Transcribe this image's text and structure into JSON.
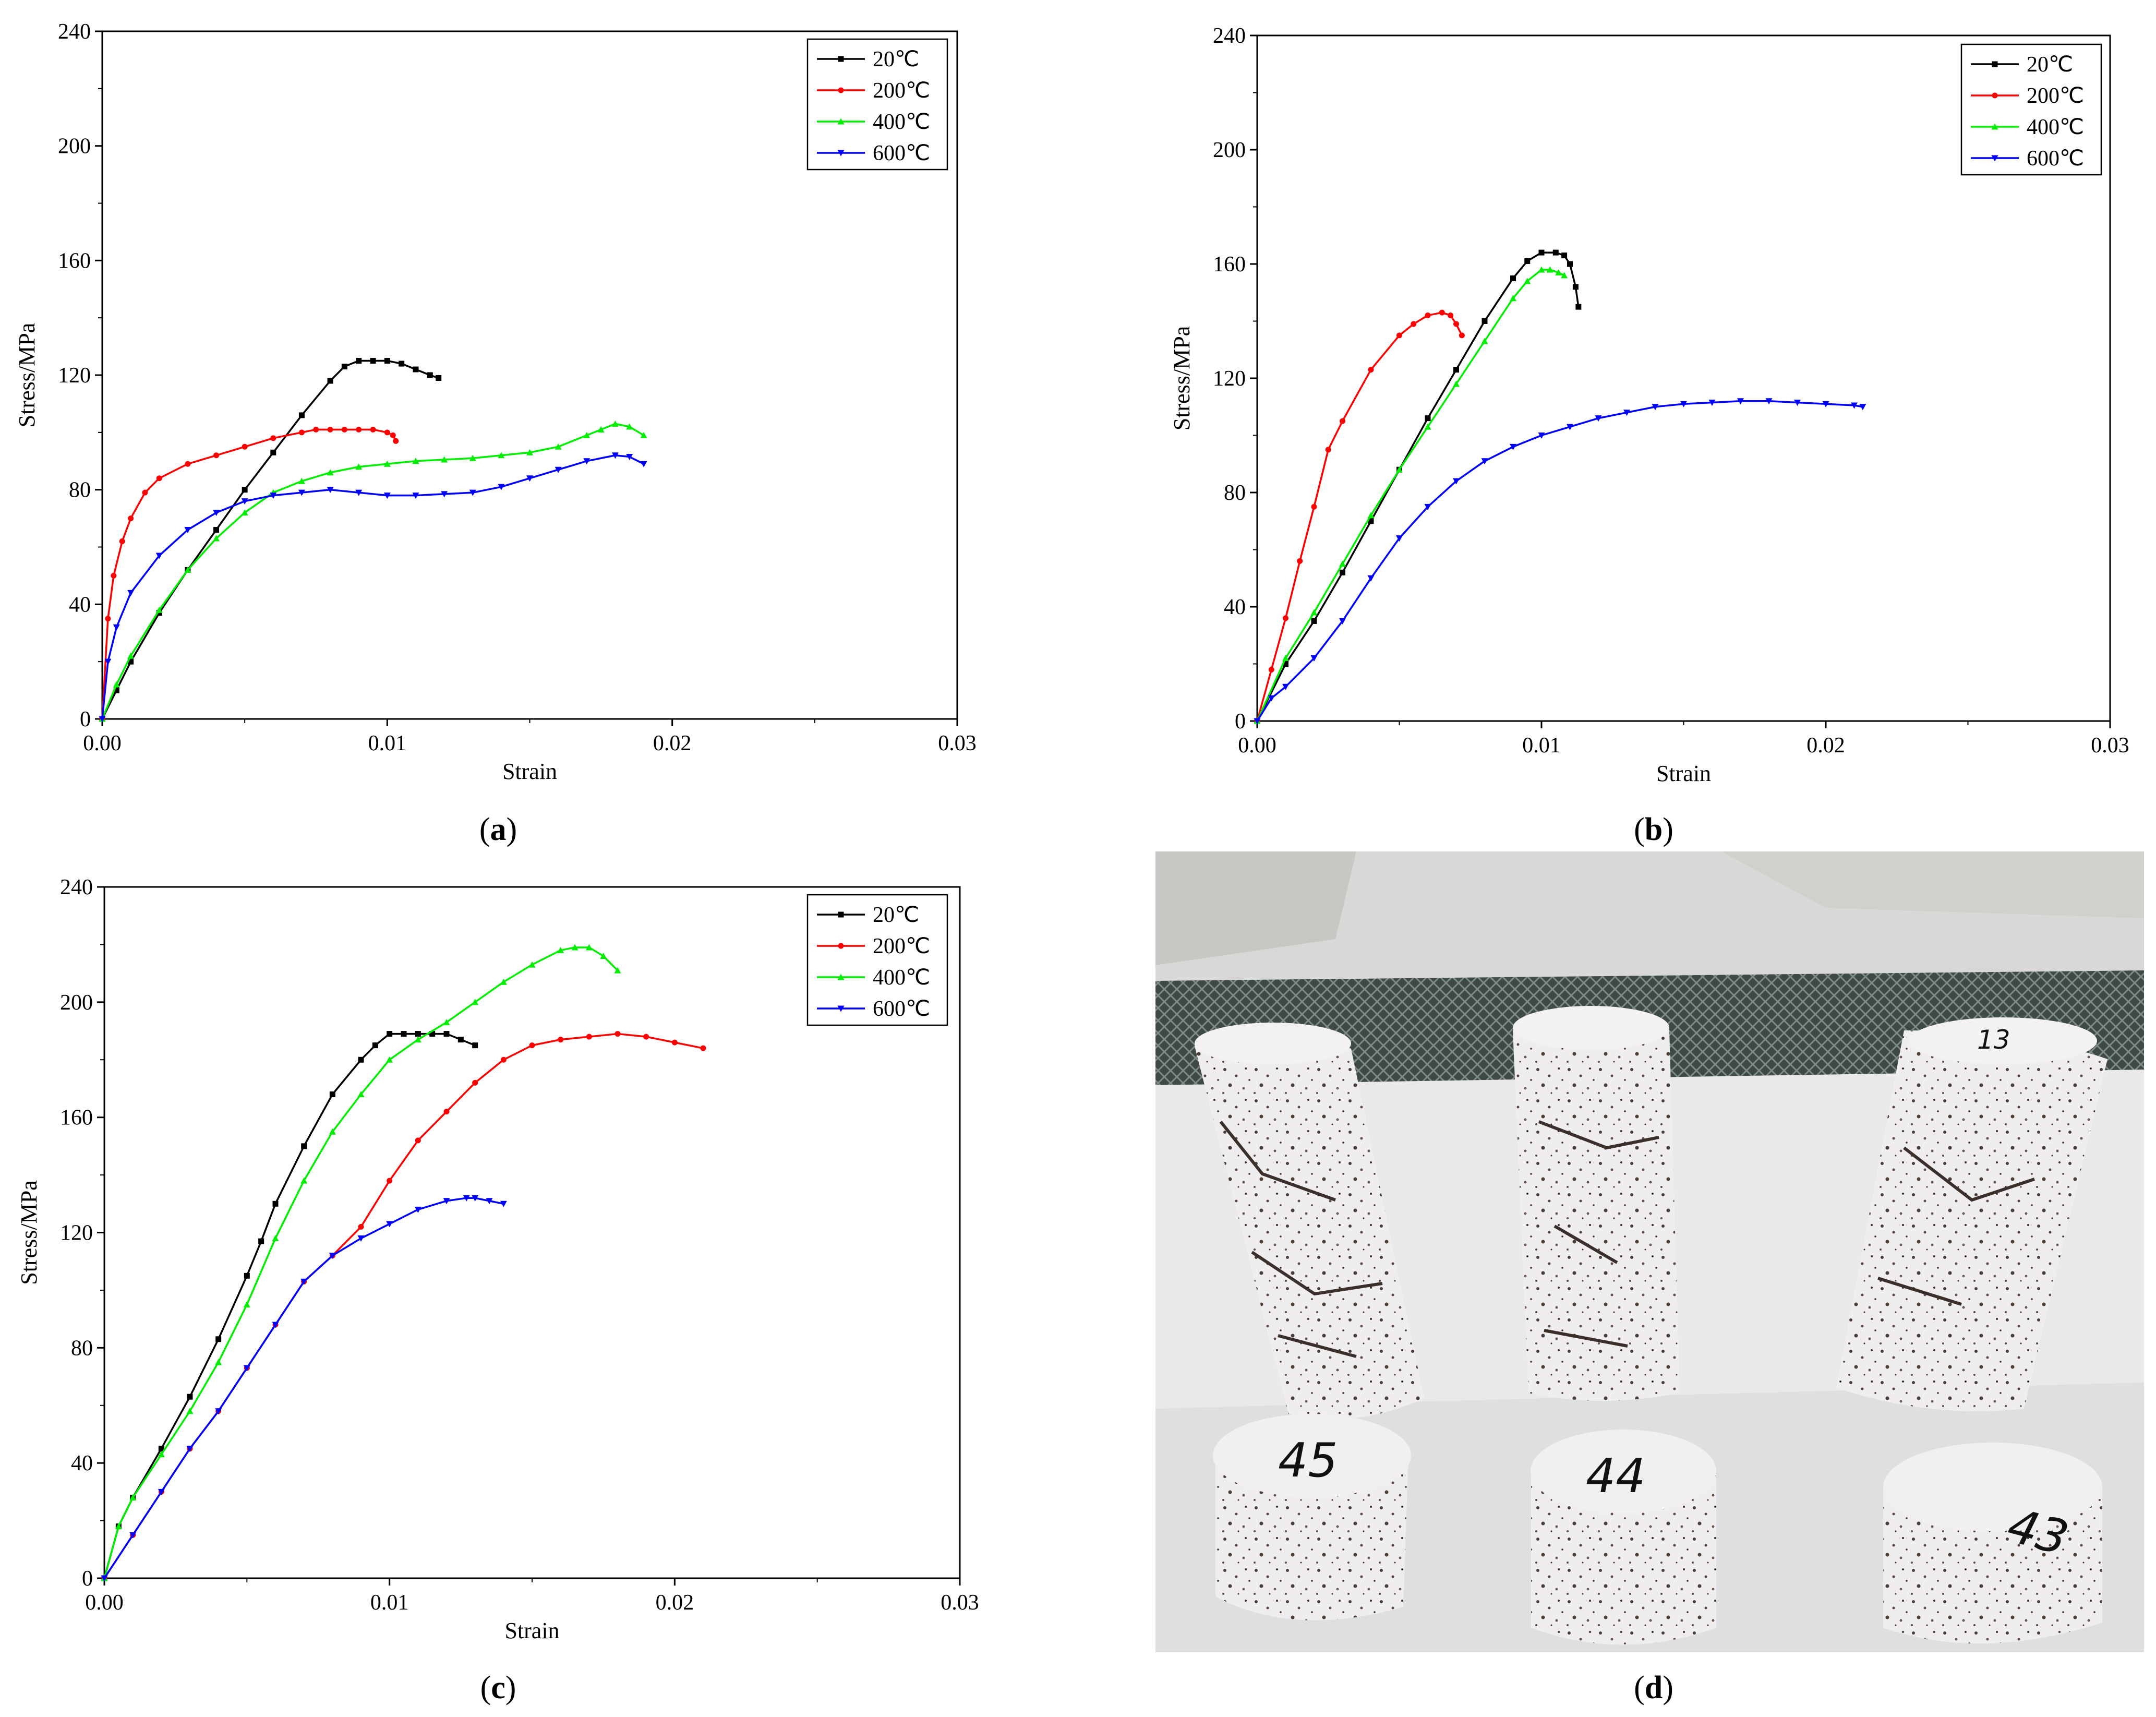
{
  "chart_data": [
    {
      "type": "line",
      "panel": "a",
      "xlabel": "Strain",
      "ylabel": "Stress/MPa",
      "xlim": [
        0,
        0.03
      ],
      "ylim": [
        0,
        240
      ],
      "xticks": [
        "0.00",
        "0.01",
        "0.02",
        "0.03"
      ],
      "yticks": [
        "0",
        "40",
        "80",
        "120",
        "160",
        "200",
        "240"
      ],
      "legend_position": "top-right",
      "series": [
        {
          "name": "20℃",
          "color": "#000000",
          "marker": "square",
          "x": [
            0,
            0.0005,
            0.001,
            0.002,
            0.003,
            0.004,
            0.005,
            0.006,
            0.007,
            0.008,
            0.0085,
            0.009,
            0.0095,
            0.01,
            0.0105,
            0.011,
            0.0115,
            0.0118
          ],
          "y": [
            0,
            10,
            20,
            37,
            52,
            66,
            80,
            93,
            106,
            118,
            123,
            125,
            125,
            125,
            124,
            122,
            120,
            119
          ]
        },
        {
          "name": "200℃",
          "color": "#ff0000",
          "marker": "circle",
          "x": [
            0,
            0.0002,
            0.0004,
            0.0007,
            0.001,
            0.0015,
            0.002,
            0.003,
            0.004,
            0.005,
            0.006,
            0.007,
            0.0075,
            0.008,
            0.0085,
            0.009,
            0.0095,
            0.01,
            0.0102,
            0.0103
          ],
          "y": [
            0,
            35,
            50,
            62,
            70,
            79,
            84,
            89,
            92,
            95,
            98,
            100,
            101,
            101,
            101,
            101,
            101,
            100,
            99,
            97
          ]
        },
        {
          "name": "400℃",
          "color": "#00ee00",
          "marker": "triangle-up",
          "x": [
            0,
            0.0005,
            0.001,
            0.002,
            0.003,
            0.004,
            0.005,
            0.006,
            0.007,
            0.008,
            0.009,
            0.01,
            0.011,
            0.012,
            0.013,
            0.014,
            0.015,
            0.016,
            0.017,
            0.0175,
            0.018,
            0.0185,
            0.019
          ],
          "y": [
            0,
            12,
            22,
            38,
            52,
            63,
            72,
            79,
            83,
            86,
            88,
            89,
            90,
            90.5,
            91,
            92,
            93,
            95,
            99,
            101,
            103,
            102,
            99
          ]
        },
        {
          "name": "600℃",
          "color": "#0000ff",
          "marker": "triangle-down",
          "x": [
            0,
            0.0002,
            0.0005,
            0.001,
            0.002,
            0.003,
            0.004,
            0.005,
            0.006,
            0.007,
            0.008,
            0.009,
            0.01,
            0.011,
            0.012,
            0.013,
            0.014,
            0.015,
            0.016,
            0.017,
            0.018,
            0.0185,
            0.019
          ],
          "y": [
            0,
            20,
            32,
            44,
            57,
            66,
            72,
            76,
            78,
            79,
            80,
            79,
            78,
            78,
            78.5,
            79,
            81,
            84,
            87,
            90,
            92,
            91.5,
            89
          ]
        }
      ]
    },
    {
      "type": "line",
      "panel": "b",
      "xlabel": "Strain",
      "ylabel": "Stress/MPa",
      "xlim": [
        0,
        0.03
      ],
      "ylim": [
        0,
        240
      ],
      "xticks": [
        "0.00",
        "0.01",
        "0.02",
        "0.03"
      ],
      "yticks": [
        "0",
        "40",
        "80",
        "120",
        "160",
        "200",
        "240"
      ],
      "legend_position": "top-right",
      "series": [
        {
          "name": "20℃",
          "color": "#000000",
          "marker": "square",
          "x": [
            0,
            0.001,
            0.002,
            0.003,
            0.004,
            0.005,
            0.006,
            0.007,
            0.008,
            0.009,
            0.0095,
            0.01,
            0.0105,
            0.0108,
            0.011,
            0.0112,
            0.0113
          ],
          "y": [
            0,
            20,
            35,
            52,
            70,
            88,
            106,
            123,
            140,
            155,
            161,
            164,
            164,
            163,
            160,
            152,
            145
          ]
        },
        {
          "name": "200℃",
          "color": "#ff0000",
          "marker": "circle",
          "x": [
            0,
            0.0005,
            0.001,
            0.0015,
            0.002,
            0.0025,
            0.003,
            0.004,
            0.005,
            0.0055,
            0.006,
            0.0065,
            0.0068,
            0.007,
            0.0072
          ],
          "y": [
            0,
            18,
            36,
            56,
            75,
            95,
            105,
            123,
            135,
            139,
            142,
            143,
            142,
            139,
            135
          ]
        },
        {
          "name": "400℃",
          "color": "#00ee00",
          "marker": "triangle-up",
          "x": [
            0,
            0.001,
            0.002,
            0.003,
            0.004,
            0.005,
            0.006,
            0.007,
            0.008,
            0.009,
            0.0095,
            0.01,
            0.0103,
            0.0106,
            0.0108
          ],
          "y": [
            0,
            22,
            38,
            55,
            72,
            88,
            103,
            118,
            133,
            148,
            154,
            158,
            158,
            157,
            156
          ]
        },
        {
          "name": "600℃",
          "color": "#0000ff",
          "marker": "triangle-down",
          "x": [
            0,
            0.0005,
            0.001,
            0.002,
            0.003,
            0.004,
            0.005,
            0.006,
            0.007,
            0.008,
            0.009,
            0.01,
            0.011,
            0.012,
            0.013,
            0.014,
            0.015,
            0.016,
            0.017,
            0.018,
            0.019,
            0.02,
            0.021,
            0.0213
          ],
          "y": [
            0,
            8,
            12,
            22,
            35,
            50,
            64,
            75,
            84,
            91,
            96,
            100,
            103,
            106,
            108,
            110,
            111,
            111.5,
            112,
            112,
            111.5,
            111,
            110.5,
            110
          ]
        }
      ]
    },
    {
      "type": "line",
      "panel": "c",
      "xlabel": "Strain",
      "ylabel": "Stress/MPa",
      "xlim": [
        0,
        0.03
      ],
      "ylim": [
        0,
        240
      ],
      "xticks": [
        "0.00",
        "0.01",
        "0.02",
        "0.03"
      ],
      "yticks": [
        "0",
        "40",
        "80",
        "120",
        "160",
        "200",
        "240"
      ],
      "legend_position": "top-right",
      "series": [
        {
          "name": "20℃",
          "color": "#000000",
          "marker": "square",
          "x": [
            0,
            0.0005,
            0.001,
            0.002,
            0.003,
            0.004,
            0.005,
            0.0055,
            0.006,
            0.007,
            0.008,
            0.009,
            0.0095,
            0.01,
            0.0105,
            0.011,
            0.0115,
            0.012,
            0.0125,
            0.013
          ],
          "y": [
            0,
            18,
            28,
            45,
            63,
            83,
            105,
            117,
            130,
            150,
            168,
            180,
            185,
            189,
            189,
            189,
            189,
            189,
            187,
            185
          ]
        },
        {
          "name": "200℃",
          "color": "#ff0000",
          "marker": "circle",
          "x": [
            0,
            0.001,
            0.002,
            0.003,
            0.004,
            0.005,
            0.006,
            0.007,
            0.008,
            0.009,
            0.01,
            0.011,
            0.012,
            0.013,
            0.014,
            0.015,
            0.016,
            0.017,
            0.018,
            0.019,
            0.02,
            0.021
          ],
          "y": [
            0,
            15,
            30,
            45,
            58,
            73,
            88,
            103,
            112,
            122,
            138,
            152,
            162,
            172,
            180,
            185,
            187,
            188,
            189,
            188,
            186,
            184
          ]
        },
        {
          "name": "400℃",
          "color": "#00ee00",
          "marker": "triangle-up",
          "x": [
            0,
            0.0005,
            0.001,
            0.002,
            0.003,
            0.004,
            0.005,
            0.006,
            0.007,
            0.008,
            0.009,
            0.01,
            0.011,
            0.012,
            0.013,
            0.014,
            0.015,
            0.016,
            0.0165,
            0.017,
            0.0175,
            0.018
          ],
          "y": [
            0,
            18,
            28,
            43,
            58,
            75,
            95,
            118,
            138,
            155,
            168,
            180,
            187,
            193,
            200,
            207,
            213,
            218,
            219,
            219,
            216,
            211
          ]
        },
        {
          "name": "600℃",
          "color": "#0000ff",
          "marker": "triangle-down",
          "x": [
            0,
            0.001,
            0.002,
            0.003,
            0.004,
            0.005,
            0.006,
            0.007,
            0.008,
            0.009,
            0.01,
            0.011,
            0.012,
            0.0127,
            0.013,
            0.0135,
            0.014
          ],
          "y": [
            0,
            15,
            30,
            45,
            58,
            73,
            88,
            103,
            112,
            118,
            123,
            128,
            131,
            132,
            132,
            131,
            130
          ]
        }
      ]
    }
  ],
  "captions": {
    "a": {
      "open": "(",
      "letter": "a",
      "close": ")"
    },
    "b": {
      "open": "(",
      "letter": "b",
      "close": ")"
    },
    "c": {
      "open": "(",
      "letter": "c",
      "close": ")"
    },
    "d": {
      "open": "(",
      "letter": "d",
      "close": ")"
    }
  },
  "photo": {
    "specimen_labels": [
      "45",
      "44",
      "43",
      "13"
    ],
    "colors": {
      "wall": "#d8d9d6",
      "table": "#e9e9ea",
      "mesh": "#3f4a47",
      "rock": "#efedee",
      "crack": "#3a2f2a"
    }
  }
}
